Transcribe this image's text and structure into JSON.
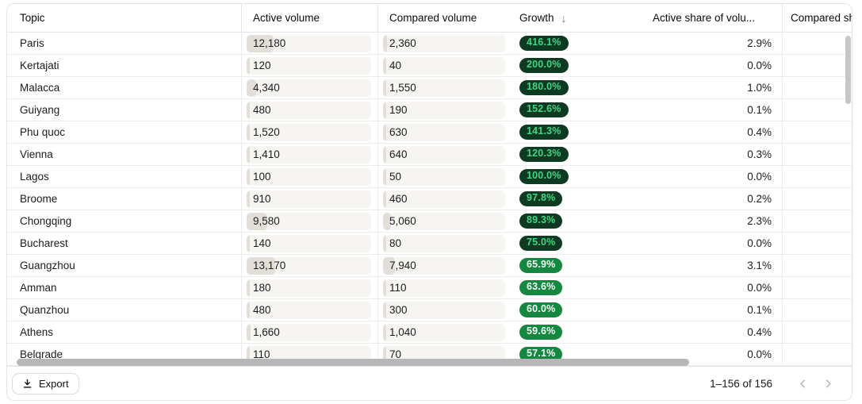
{
  "table": {
    "columns": [
      {
        "label": "Topic"
      },
      {
        "label": "Active volume"
      },
      {
        "label": "Compared volume"
      },
      {
        "label": "Growth",
        "sorted": "desc"
      },
      {
        "label": "Active share of volu..."
      },
      {
        "label": "Compared sh..."
      }
    ],
    "sort_icon": "↓",
    "bar_scales": {
      "active_max": 57000,
      "compared_max": 80000
    },
    "pill_dark_threshold": 70,
    "rows": [
      {
        "topic": "Paris",
        "active_label": "12,180",
        "active_value": 12180,
        "compared_label": "2,360",
        "compared_value": 2360,
        "growth_label": "416.1%",
        "growth_value": 416.1,
        "active_share_label": "2.9%"
      },
      {
        "topic": "Kertajati",
        "active_label": "120",
        "active_value": 120,
        "compared_label": "40",
        "compared_value": 40,
        "growth_label": "200.0%",
        "growth_value": 200.0,
        "active_share_label": "0.0%"
      },
      {
        "topic": "Malacca",
        "active_label": "4,340",
        "active_value": 4340,
        "compared_label": "1,550",
        "compared_value": 1550,
        "growth_label": "180.0%",
        "growth_value": 180.0,
        "active_share_label": "1.0%"
      },
      {
        "topic": "Guiyang",
        "active_label": "480",
        "active_value": 480,
        "compared_label": "190",
        "compared_value": 190,
        "growth_label": "152.6%",
        "growth_value": 152.6,
        "active_share_label": "0.1%"
      },
      {
        "topic": "Phu quoc",
        "active_label": "1,520",
        "active_value": 1520,
        "compared_label": "630",
        "compared_value": 630,
        "growth_label": "141.3%",
        "growth_value": 141.3,
        "active_share_label": "0.4%"
      },
      {
        "topic": "Vienna",
        "active_label": "1,410",
        "active_value": 1410,
        "compared_label": "640",
        "compared_value": 640,
        "growth_label": "120.3%",
        "growth_value": 120.3,
        "active_share_label": "0.3%"
      },
      {
        "topic": "Lagos",
        "active_label": "100",
        "active_value": 100,
        "compared_label": "50",
        "compared_value": 50,
        "growth_label": "100.0%",
        "growth_value": 100.0,
        "active_share_label": "0.0%"
      },
      {
        "topic": "Broome",
        "active_label": "910",
        "active_value": 910,
        "compared_label": "460",
        "compared_value": 460,
        "growth_label": "97.8%",
        "growth_value": 97.8,
        "active_share_label": "0.2%"
      },
      {
        "topic": "Chongqing",
        "active_label": "9,580",
        "active_value": 9580,
        "compared_label": "5,060",
        "compared_value": 5060,
        "growth_label": "89.3%",
        "growth_value": 89.3,
        "active_share_label": "2.3%"
      },
      {
        "topic": "Bucharest",
        "active_label": "140",
        "active_value": 140,
        "compared_label": "80",
        "compared_value": 80,
        "growth_label": "75.0%",
        "growth_value": 75.0,
        "active_share_label": "0.0%"
      },
      {
        "topic": "Guangzhou",
        "active_label": "13,170",
        "active_value": 13170,
        "compared_label": "7,940",
        "compared_value": 7940,
        "growth_label": "65.9%",
        "growth_value": 65.9,
        "active_share_label": "3.1%"
      },
      {
        "topic": "Amman",
        "active_label": "180",
        "active_value": 180,
        "compared_label": "110",
        "compared_value": 110,
        "growth_label": "63.6%",
        "growth_value": 63.6,
        "active_share_label": "0.0%"
      },
      {
        "topic": "Quanzhou",
        "active_label": "480",
        "active_value": 480,
        "compared_label": "300",
        "compared_value": 300,
        "growth_label": "60.0%",
        "growth_value": 60.0,
        "active_share_label": "0.1%"
      },
      {
        "topic": "Athens",
        "active_label": "1,660",
        "active_value": 1660,
        "compared_label": "1,040",
        "compared_value": 1040,
        "growth_label": "59.6%",
        "growth_value": 59.6,
        "active_share_label": "0.4%"
      },
      {
        "topic": "Belgrade",
        "active_label": "110",
        "active_value": 110,
        "compared_label": "70",
        "compared_value": 70,
        "growth_label": "57.1%",
        "growth_value": 57.1,
        "active_share_label": "0.0%"
      }
    ]
  },
  "footer": {
    "export_label": "Export",
    "range_label": "1–156 of 156"
  },
  "colors": {
    "pill_dark_bg": "#0e3a24",
    "pill_dark_text": "#41d680",
    "pill_green_bg": "#168740",
    "pill_green_text": "#f0fdf4",
    "bar_track": "#f7f5f2",
    "bar_fill": "#e3dfd8"
  }
}
